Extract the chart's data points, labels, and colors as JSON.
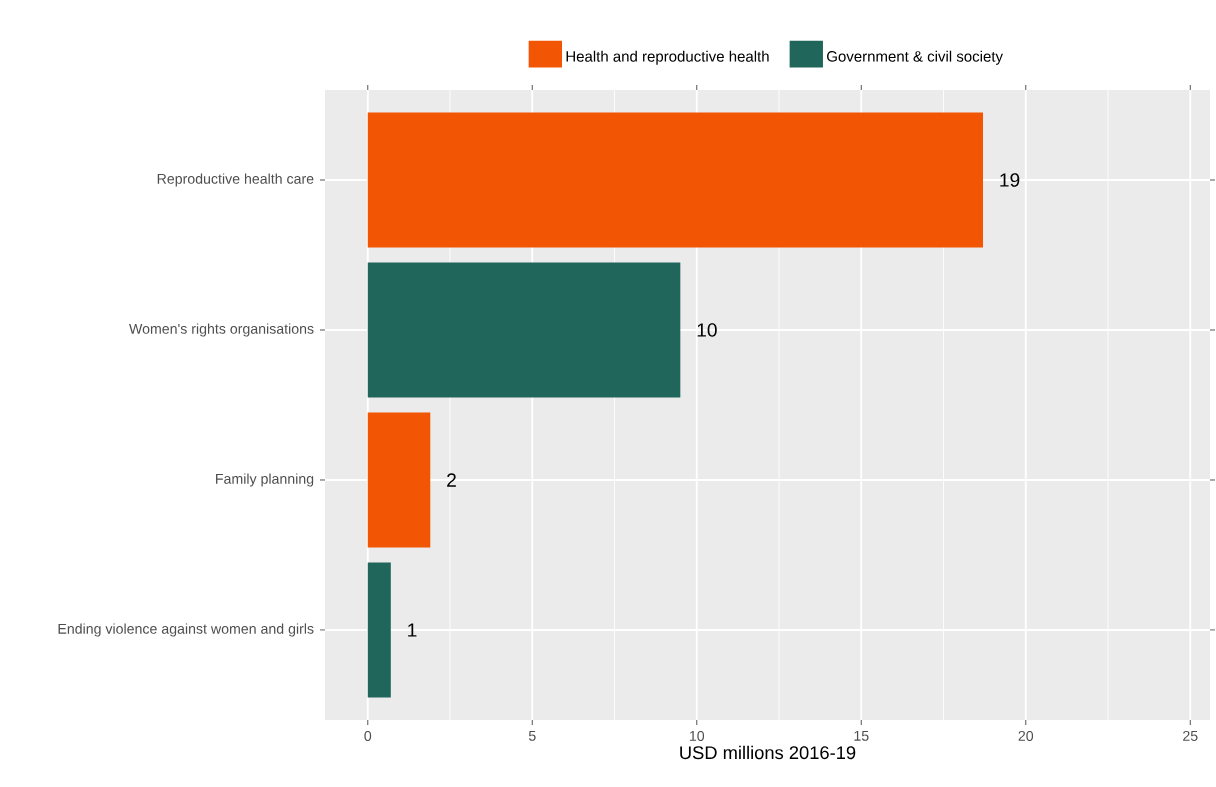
{
  "chart_data": {
    "type": "bar",
    "orientation": "horizontal",
    "xlabel": "USD millions 2016-19",
    "categories": [
      "Reproductive health care",
      "Women's rights organisations",
      "Family planning",
      "Ending violence against women and girls"
    ],
    "series": [
      {
        "name": "Health and reproductive health",
        "color": "#f25503",
        "values": [
          18.7,
          null,
          1.9,
          null
        ],
        "value_labels": [
          "19",
          null,
          "2",
          null
        ]
      },
      {
        "name": "Government & civil society",
        "color": "#20665a",
        "values": [
          null,
          9.5,
          null,
          0.7
        ],
        "value_labels": [
          null,
          "10",
          null,
          "1"
        ]
      }
    ],
    "xlim": [
      -1.3,
      25.6
    ],
    "xticks": [
      0,
      5,
      10,
      15,
      20,
      25
    ],
    "grid": true,
    "legend": "top"
  }
}
